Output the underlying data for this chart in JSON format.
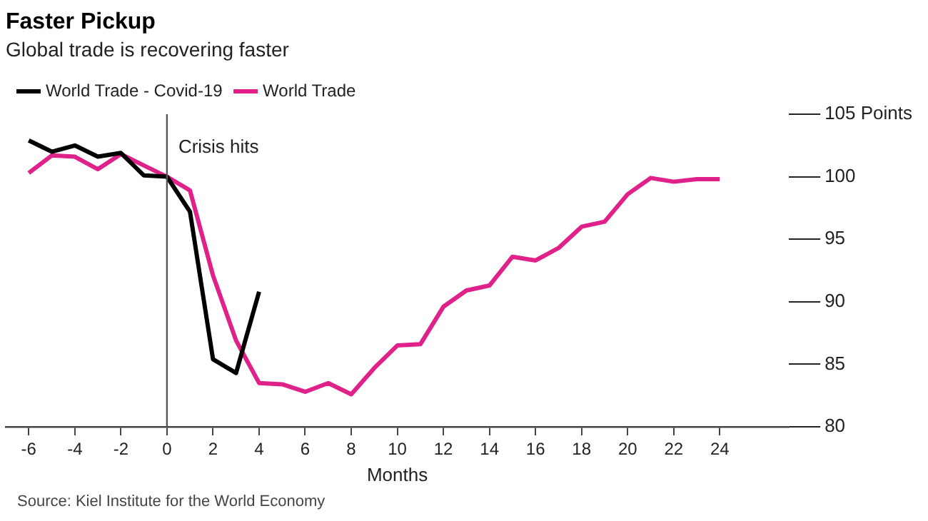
{
  "chart_data": {
    "type": "line",
    "title": "Faster Pickup",
    "subtitle": "Global trade is recovering faster",
    "xlabel": "Months",
    "series": [
      {
        "name": "World Trade - Covid-19",
        "color": "#000000",
        "x": [
          -6,
          -5,
          -4,
          -3,
          -2,
          -1,
          0,
          1,
          2,
          3,
          4
        ],
        "values": [
          102.9,
          102.0,
          102.5,
          101.6,
          101.9,
          100.1,
          100.0,
          97.2,
          85.4,
          84.3,
          90.8
        ]
      },
      {
        "name": "World Trade",
        "color": "#e0218a",
        "x": [
          -6,
          -5,
          -4,
          -3,
          -2,
          -1,
          0,
          1,
          2,
          3,
          4,
          5,
          6,
          7,
          8,
          9,
          10,
          11,
          12,
          13,
          14,
          15,
          16,
          17,
          18,
          19,
          20,
          21,
          22,
          23,
          24
        ],
        "values": [
          100.3,
          101.7,
          101.6,
          100.6,
          101.8,
          100.9,
          100.0,
          98.9,
          92.1,
          86.9,
          83.5,
          83.4,
          82.8,
          83.5,
          82.6,
          84.7,
          86.5,
          86.6,
          89.6,
          90.9,
          91.3,
          93.6,
          93.3,
          94.3,
          96.0,
          96.4,
          98.6,
          99.9,
          99.6,
          99.8,
          99.8
        ]
      }
    ],
    "xlim": [
      -7,
      27
    ],
    "xticks": [
      -6,
      -4,
      -2,
      0,
      2,
      4,
      6,
      8,
      10,
      12,
      14,
      16,
      18,
      20,
      22,
      24
    ],
    "ylim": [
      80,
      105
    ],
    "yticks": [
      80,
      85,
      90,
      95,
      100,
      {
        "value": 105,
        "label": "105 Points"
      }
    ],
    "ref_lines": [
      {
        "axis": "x",
        "value": 0,
        "color": "#555555"
      }
    ],
    "annotations": [
      {
        "text": "Crisis hits",
        "x": 0,
        "y": 102.3
      },
      "Source: Kiel Institute for the World Economy"
    ],
    "grid": false,
    "legend": "top left",
    "marker": "none",
    "line_style": "solid"
  }
}
